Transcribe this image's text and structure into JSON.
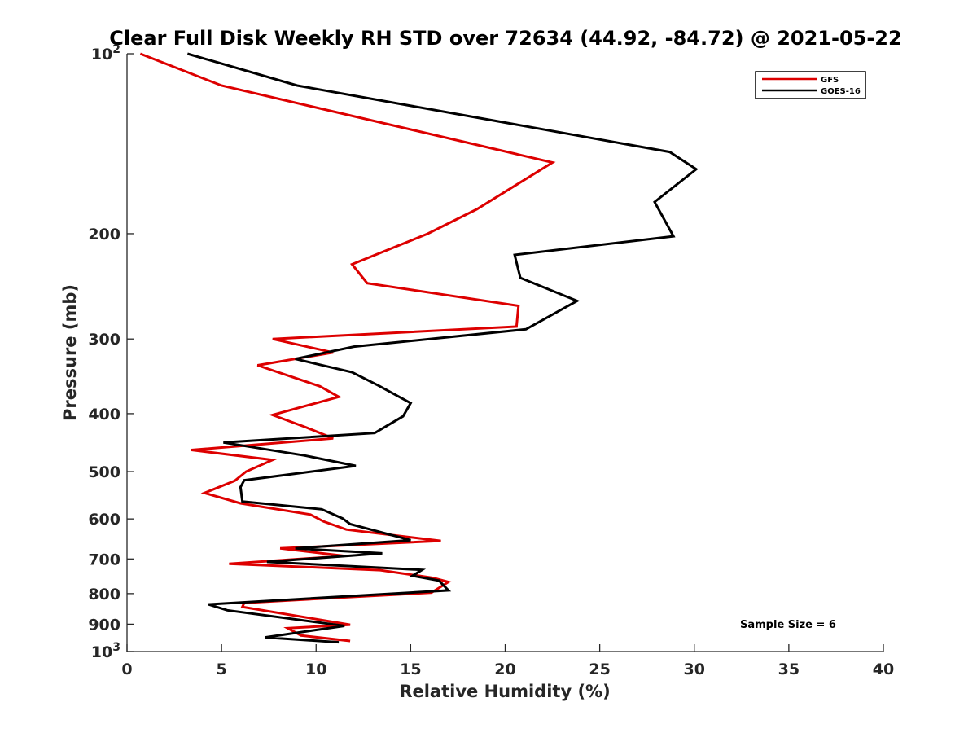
{
  "chart_data": {
    "type": "line",
    "title": "Clear Full Disk Weekly RH STD over 72634 (44.92, -84.72) @ 2021-05-22",
    "xlabel": "Relative Humidity (%)",
    "ylabel": "Pressure (mb)",
    "xlim": [
      0,
      40
    ],
    "ylim": [
      100,
      1000
    ],
    "yscale": "log",
    "y_reversed": true,
    "grid": false,
    "x_ticks": [
      0,
      5,
      10,
      15,
      20,
      25,
      30,
      35,
      40
    ],
    "x_tick_labels": [
      "0",
      "5",
      "10",
      "15",
      "20",
      "25",
      "30",
      "35",
      "40"
    ],
    "y_ticks": [
      100,
      200,
      300,
      400,
      500,
      600,
      700,
      800,
      900,
      1000
    ],
    "y_tick_labels": [
      {
        "base": "10",
        "exp": "2"
      },
      {
        "base": "200"
      },
      {
        "base": "300"
      },
      {
        "base": "400"
      },
      {
        "base": "500"
      },
      {
        "base": "600"
      },
      {
        "base": "700"
      },
      {
        "base": "800"
      },
      {
        "base": "900"
      },
      {
        "base": "10",
        "exp": "3"
      }
    ],
    "legend_position": "top-right",
    "annotation": "Sample Size = 6",
    "series": [
      {
        "name": "GFS",
        "color": "#dd0000",
        "x": [
          0.7,
          5.0,
          22.5,
          18.5,
          15.9,
          11.9,
          12.7,
          20.7,
          20.6,
          7.7,
          10.9,
          6.9,
          10.2,
          11.2,
          7.7,
          9.5,
          10.9,
          3.4,
          7.7,
          6.3,
          5.7,
          4.1,
          6.0,
          9.7,
          10.4,
          11.6,
          16.6,
          8.1,
          11.5,
          5.4,
          13.4,
          16.2,
          17.0,
          16.1,
          6.2,
          6.1,
          11.8,
          8.5,
          9.2,
          11.8
        ],
        "y": [
          100,
          113,
          152,
          182,
          200,
          225,
          242,
          264,
          286,
          300,
          316,
          332,
          360,
          375,
          402,
          422,
          440,
          460,
          478,
          500,
          518,
          543,
          565,
          590,
          606,
          625,
          653,
          672,
          692,
          713,
          731,
          753,
          765,
          797,
          829,
          842,
          902,
          914,
          940,
          960
        ]
      },
      {
        "name": "GOES-16",
        "color": "#000000",
        "x": [
          3.2,
          9.0,
          28.7,
          30.1,
          27.9,
          28.9,
          20.5,
          20.8,
          23.8,
          21.1,
          12.0,
          8.9,
          11.9,
          13.3,
          15.0,
          14.6,
          13.1,
          5.1,
          9.4,
          12.1,
          6.2,
          6.0,
          6.1,
          10.3,
          11.4,
          11.8,
          15.0,
          8.9,
          13.5,
          7.4,
          15.6,
          15.1,
          16.5,
          17.0,
          4.3,
          5.3,
          11.5,
          9.7,
          7.3,
          11.2
        ],
        "y": [
          100,
          113,
          146,
          156,
          177,
          202,
          217,
          237,
          259,
          289,
          309,
          324,
          341,
          359,
          384,
          404,
          431,
          447,
          470,
          489,
          517,
          531,
          561,
          578,
          599,
          612,
          651,
          672,
          685,
          708,
          730,
          747,
          761,
          790,
          834,
          853,
          906,
          923,
          947,
          965
        ]
      }
    ]
  }
}
